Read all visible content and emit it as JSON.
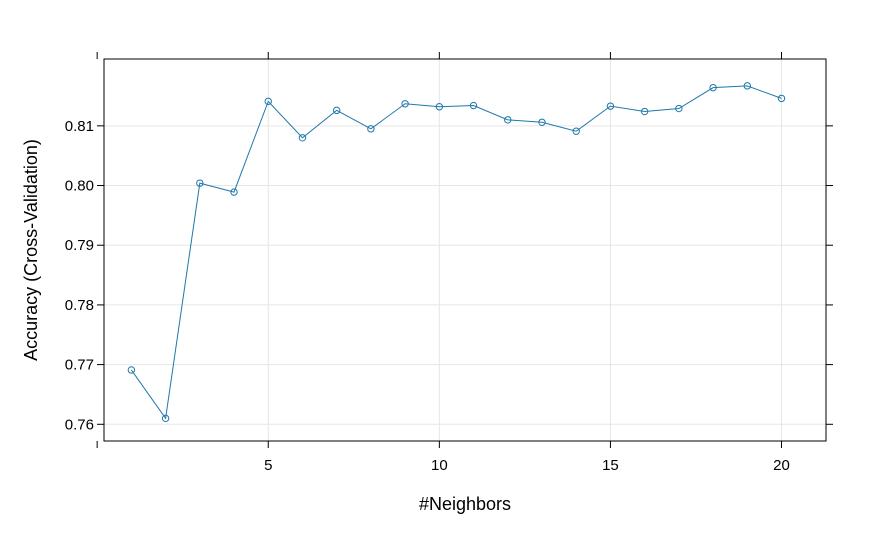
{
  "chart_data": {
    "type": "line",
    "xlabel": "#Neighbors",
    "ylabel": "Accuracy (Cross-Validation)",
    "xlim": [
      0.2,
      21.3
    ],
    "ylim": [
      0.7572,
      0.8212
    ],
    "xticks": [
      5,
      10,
      15,
      20
    ],
    "yticks": [
      0.76,
      0.77,
      0.78,
      0.79,
      0.8,
      0.81
    ],
    "ytick_labels": [
      "0.76",
      "0.77",
      "0.78",
      "0.79",
      "0.80",
      "0.81"
    ],
    "grid": true,
    "x": [
      1,
      2,
      3,
      4,
      5,
      6,
      7,
      8,
      9,
      10,
      11,
      12,
      13,
      14,
      15,
      16,
      17,
      18,
      19,
      20
    ],
    "y": [
      0.7691,
      0.761,
      0.8004,
      0.7989,
      0.8141,
      0.808,
      0.8126,
      0.8095,
      0.8137,
      0.8132,
      0.8134,
      0.811,
      0.8106,
      0.8091,
      0.8133,
      0.8124,
      0.8129,
      0.8164,
      0.8167,
      0.8146
    ],
    "colors": {
      "line": "#1f78a8",
      "grid": "#e6e6e6",
      "frame": "#000000"
    }
  }
}
